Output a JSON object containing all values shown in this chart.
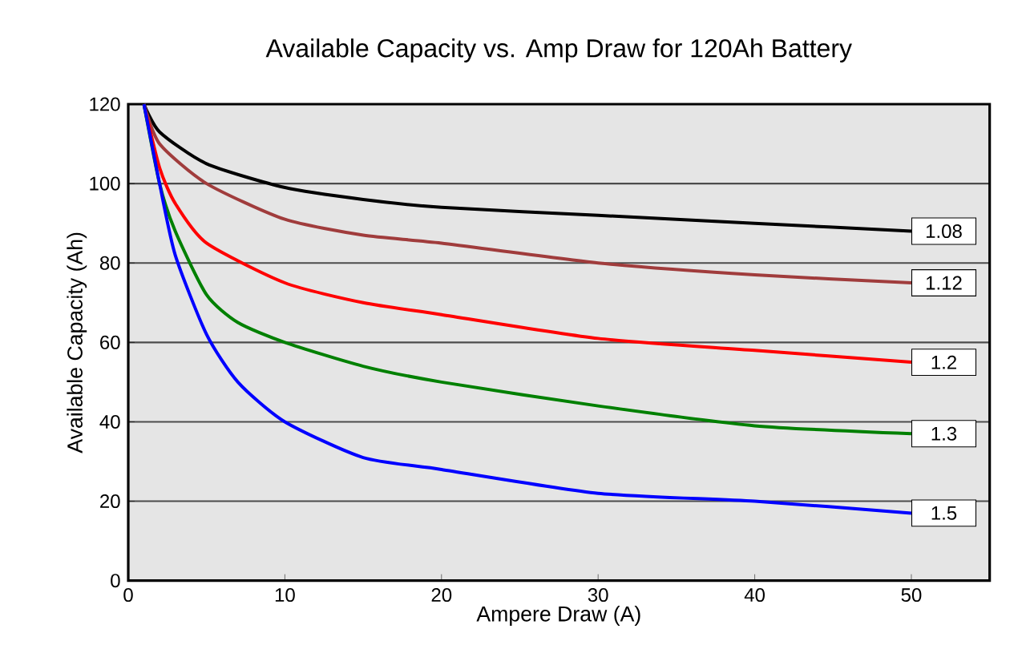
{
  "chart_data": {
    "type": "line",
    "title": "Available Capacity vs. Amp Draw for 120Ah Battery",
    "xlabel": "Ampere Draw (A)",
    "ylabel": "Available Capacity (Ah)",
    "xlim": [
      0,
      55
    ],
    "ylim": [
      0,
      120
    ],
    "xticks": [
      0,
      10,
      20,
      30,
      40,
      50
    ],
    "yticks": [
      0,
      20,
      40,
      60,
      80,
      100,
      120
    ],
    "grid": "y",
    "legend": false,
    "marker": "none",
    "line_style": "solid",
    "series": [
      {
        "name": "1.08",
        "color": "#000000",
        "x": [
          1,
          2,
          5,
          10,
          15,
          20,
          30,
          40,
          50
        ],
        "values": [
          120,
          113,
          105,
          99,
          96,
          94,
          92,
          90,
          88
        ]
      },
      {
        "name": "1.12",
        "color": "#a03c3c",
        "x": [
          1,
          2,
          5,
          10,
          15,
          20,
          30,
          40,
          50
        ],
        "values": [
          120,
          110,
          100,
          91,
          87,
          85,
          80,
          77,
          75
        ]
      },
      {
        "name": "1.2",
        "color": "#ff0000",
        "x": [
          1,
          2,
          3,
          5,
          10,
          15,
          20,
          30,
          40,
          50
        ],
        "values": [
          120,
          104,
          95,
          85,
          75,
          70,
          67,
          61,
          58,
          55
        ]
      },
      {
        "name": "1.3",
        "color": "#008000",
        "x": [
          1,
          2,
          3,
          5,
          7,
          10,
          15,
          20,
          30,
          40,
          50
        ],
        "values": [
          120,
          100,
          88,
          72,
          65,
          60,
          54,
          50,
          44,
          39,
          37
        ]
      },
      {
        "name": "1.5",
        "color": "#0000ff",
        "x": [
          1,
          1.5,
          2,
          3,
          5,
          7,
          10,
          15,
          20,
          30,
          40,
          50
        ],
        "values": [
          120,
          110,
          100,
          82,
          62,
          50,
          40,
          31,
          28,
          22,
          20,
          17
        ]
      }
    ]
  }
}
